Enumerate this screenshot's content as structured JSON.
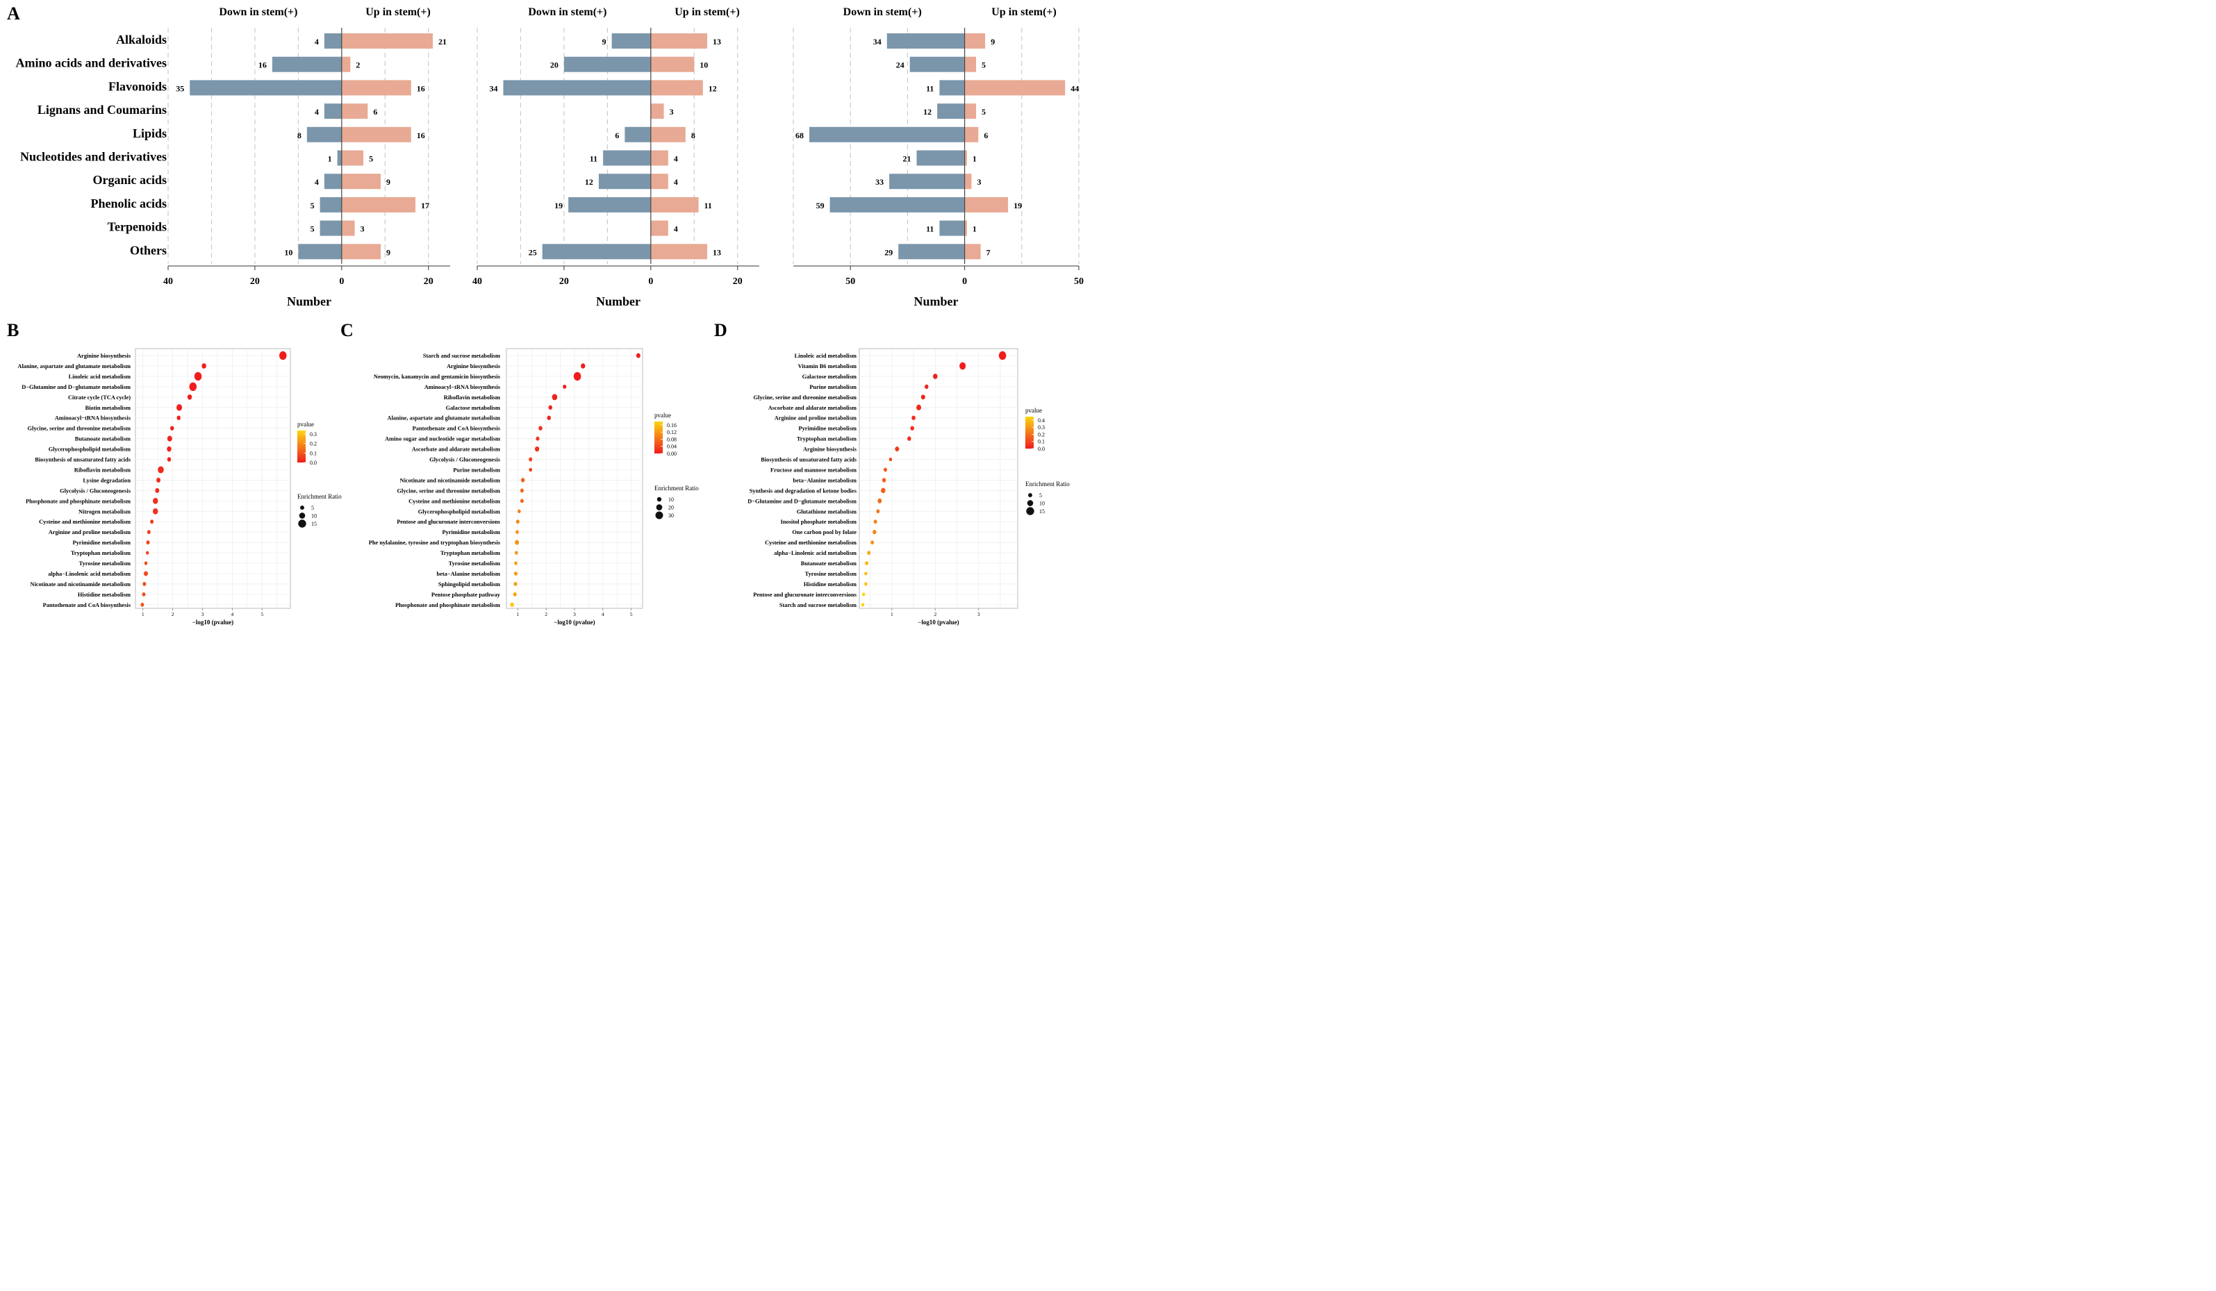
{
  "panel_letters": [
    "A",
    "B",
    "C",
    "D"
  ],
  "colors": {
    "down": "#7b96ab",
    "up": "#e8aa94",
    "low_p": "#f01c1c",
    "mid_p": "#f47a1a",
    "high_p": "#fcd50d"
  },
  "chart_data": [
    {
      "type": "bar",
      "panel": "A-1",
      "left_header": "Down in stem(+)",
      "right_header": "Up in stem(+)",
      "categories": [
        "Alkaloids",
        "Amino acids and derivatives",
        "Flavonoids",
        "Lignans and Coumarins",
        "Lipids",
        "Nucleotides and derivatives",
        "Organic acids",
        "Phenolic acids",
        "Terpenoids",
        "Others"
      ],
      "series": [
        {
          "name": "Down in stem(+)",
          "values": [
            4,
            16,
            35,
            4,
            8,
            1,
            4,
            5,
            5,
            10
          ],
          "labels": [
            "4",
            "16",
            "35",
            "4",
            "8",
            "1",
            "4",
            "5",
            "5",
            "10"
          ]
        },
        {
          "name": "Up in stem(+)",
          "values": [
            21,
            2,
            16,
            6,
            16,
            5,
            9,
            17,
            3,
            9
          ],
          "labels": [
            "21",
            "2",
            "16",
            "6",
            "16",
            "5",
            "9",
            "17",
            "3",
            "9"
          ]
        }
      ],
      "xlim": [
        -40,
        25
      ],
      "xticks": [
        -40,
        -20,
        0,
        20
      ],
      "xtick_labels": [
        "40",
        "20",
        "0",
        "20"
      ],
      "xlabel": "Number"
    },
    {
      "type": "bar",
      "panel": "A-2",
      "left_header": "Down in stem(+)",
      "right_header": "Up in stem(+)",
      "categories": [
        "Alkaloids",
        "Amino acids and derivatives",
        "Flavonoids",
        "Lignans and Coumarins",
        "Lipids",
        "Nucleotides and derivatives",
        "Organic acids",
        "Phenolic acids",
        "Terpenoids",
        "Others"
      ],
      "series": [
        {
          "name": "Down in stem(+)",
          "values": [
            9,
            20,
            34,
            0,
            6,
            11,
            12,
            19,
            0,
            25
          ],
          "labels": [
            "9",
            "20",
            "34",
            "",
            "6",
            "11",
            "12",
            "19",
            "",
            "25"
          ]
        },
        {
          "name": "Up in stem(+)",
          "values": [
            13,
            10,
            12,
            3,
            8,
            4,
            4,
            11,
            4,
            13
          ],
          "labels": [
            "13",
            "10",
            "12",
            "3",
            "8",
            "4",
            "4",
            "11",
            "4",
            "13"
          ]
        }
      ],
      "xlim": [
        -40,
        25
      ],
      "xticks": [
        -40,
        -20,
        0,
        20
      ],
      "xtick_labels": [
        "40",
        "20",
        "0",
        "20"
      ],
      "xlabel": "Number"
    },
    {
      "type": "bar",
      "panel": "A-3",
      "left_header": "Down in stem(+)",
      "right_header": "Up in stem(+)",
      "categories": [
        "Alkaloids",
        "Amino acids and derivatives",
        "Flavonoids",
        "Lignans and Coumarins",
        "Lipids",
        "Nucleotides and derivatives",
        "Organic acids",
        "Phenolic acids",
        "Terpenoids",
        "Others"
      ],
      "series": [
        {
          "name": "Down in stem(+)",
          "values": [
            34,
            24,
            11,
            12,
            68,
            21,
            33,
            59,
            11,
            29
          ],
          "labels": [
            "34",
            "24",
            "11",
            "12",
            "68",
            "21",
            "33",
            "59",
            "11",
            "29"
          ]
        },
        {
          "name": "Up in stem(+)",
          "values": [
            9,
            5,
            44,
            5,
            6,
            1,
            3,
            19,
            1,
            7
          ],
          "labels": [
            "9",
            "5",
            "44",
            "5",
            "6",
            "1",
            "3",
            "19",
            "1",
            "7"
          ]
        }
      ],
      "xlim": [
        -75,
        50
      ],
      "xticks": [
        -50,
        0,
        50
      ],
      "xtick_labels": [
        "50",
        "0",
        "50"
      ],
      "xlabel": "Number"
    },
    {
      "type": "scatter",
      "panel": "B",
      "xlabel": "−log10 (pvalue)",
      "xlim": [
        0.75,
        5.95
      ],
      "xticks": [
        1,
        2,
        3,
        4,
        5
      ],
      "legend_color_title": "pvalue",
      "color_ticks": [
        0.3,
        0.2,
        0.1,
        0.0
      ],
      "color_tick_labels": [
        "0.3",
        "0.2",
        "0.1",
        "0.0"
      ],
      "pmax": 0.36,
      "legend_size_title": "Enrichment Ratio",
      "size_ticks": [
        5,
        10,
        15
      ],
      "size_tick_labels": [
        "5",
        "10",
        "15"
      ],
      "size_range": [
        3,
        15
      ],
      "points": [
        {
          "pathway": "Arginine biosynthesis",
          "x": 5.7,
          "p": 0.0,
          "ratio": 15
        },
        {
          "pathway": "Alanine, aspartate and glutamate metabolism",
          "x": 3.05,
          "p": 0.001,
          "ratio": 7
        },
        {
          "pathway": "Linoleic acid metabolism",
          "x": 2.85,
          "p": 0.001,
          "ratio": 15
        },
        {
          "pathway": "D−Glutamine and D−glutamate metabolism",
          "x": 2.68,
          "p": 0.002,
          "ratio": 15
        },
        {
          "pathway": "Citrate cycle (TCA cycle)",
          "x": 2.57,
          "p": 0.003,
          "ratio": 7
        },
        {
          "pathway": "Biotin metabolism",
          "x": 2.22,
          "p": 0.006,
          "ratio": 10
        },
        {
          "pathway": "Aminoacyl−tRNA biosynthesis",
          "x": 2.2,
          "p": 0.006,
          "ratio": 5
        },
        {
          "pathway": "Glycine, serine and threonine metabolism",
          "x": 1.98,
          "p": 0.01,
          "ratio": 5
        },
        {
          "pathway": "Butanoate metabolism",
          "x": 1.9,
          "p": 0.013,
          "ratio": 8
        },
        {
          "pathway": "Glycerophospholipid metabolism",
          "x": 1.88,
          "p": 0.013,
          "ratio": 7
        },
        {
          "pathway": "Biosynthesis of unsaturated fatty acids",
          "x": 1.88,
          "p": 0.013,
          "ratio": 5
        },
        {
          "pathway": "Riboflavin metabolism",
          "x": 1.6,
          "p": 0.025,
          "ratio": 11
        },
        {
          "pathway": "Lysine degradation",
          "x": 1.52,
          "p": 0.03,
          "ratio": 6
        },
        {
          "pathway": "Glycolysis / Gluconeogenesis",
          "x": 1.48,
          "p": 0.033,
          "ratio": 6
        },
        {
          "pathway": "Phosphonate and phosphinate metabolism",
          "x": 1.42,
          "p": 0.038,
          "ratio": 9
        },
        {
          "pathway": "Nitrogen metabolism",
          "x": 1.42,
          "p": 0.038,
          "ratio": 9
        },
        {
          "pathway": "Cysteine and methionine metabolism",
          "x": 1.3,
          "p": 0.05,
          "ratio": 4
        },
        {
          "pathway": "Arginine and proline metabolism",
          "x": 1.2,
          "p": 0.063,
          "ratio": 4
        },
        {
          "pathway": "Pyrimidine metabolism",
          "x": 1.17,
          "p": 0.068,
          "ratio": 4
        },
        {
          "pathway": "Tryptophan metabolism",
          "x": 1.15,
          "p": 0.07,
          "ratio": 3
        },
        {
          "pathway": "Tyrosine metabolism",
          "x": 1.1,
          "p": 0.08,
          "ratio": 3
        },
        {
          "pathway": "alpha−Linolenic acid metabolism",
          "x": 1.1,
          "p": 0.08,
          "ratio": 6
        },
        {
          "pathway": "Nicotinate and nicotinamide metabolism",
          "x": 1.05,
          "p": 0.09,
          "ratio": 4
        },
        {
          "pathway": "Histidine metabolism",
          "x": 1.03,
          "p": 0.093,
          "ratio": 4
        },
        {
          "pathway": "Pantothenate and CoA biosynthesis",
          "x": 0.98,
          "p": 0.105,
          "ratio": 4
        }
      ]
    },
    {
      "type": "scatter",
      "panel": "C",
      "xlabel": "−log10 (pvalue)",
      "xlim": [
        0.6,
        5.4
      ],
      "xticks": [
        1,
        2,
        3,
        4,
        5
      ],
      "legend_color_title": "pvalue",
      "color_ticks": [
        0.16,
        0.12,
        0.08,
        0.04,
        0.0
      ],
      "color_tick_labels": [
        "0.16",
        "0.12",
        "0.08",
        "0.04",
        "0.00"
      ],
      "pmax": 0.17,
      "legend_size_title": "Enrichment Ratio",
      "size_ticks": [
        10,
        20,
        30
      ],
      "size_tick_labels": [
        "10",
        "20",
        "30"
      ],
      "size_range": [
        3,
        32
      ],
      "points": [
        {
          "pathway": "Starch and sucrose metabolism",
          "x": 5.25,
          "p": 0.0,
          "ratio": 10
        },
        {
          "pathway": "Arginine biosynthesis",
          "x": 3.3,
          "p": 0.001,
          "ratio": 12
        },
        {
          "pathway": "Neomycin, kanamycin and gentamicin biosynthesis",
          "x": 3.1,
          "p": 0.001,
          "ratio": 32
        },
        {
          "pathway": "Aminoacyl−tRNA biosynthesis",
          "x": 2.65,
          "p": 0.002,
          "ratio": 6
        },
        {
          "pathway": "Riboflavin metabolism",
          "x": 2.3,
          "p": 0.005,
          "ratio": 18
        },
        {
          "pathway": "Galactose metabolism",
          "x": 2.15,
          "p": 0.007,
          "ratio": 8
        },
        {
          "pathway": "Alanine, aspartate and glutamate metabolism",
          "x": 2.1,
          "p": 0.008,
          "ratio": 8
        },
        {
          "pathway": "Pantothenate and CoA biosynthesis",
          "x": 1.8,
          "p": 0.016,
          "ratio": 8
        },
        {
          "pathway": "Amino sugar and nucleotide sugar metabolism",
          "x": 1.7,
          "p": 0.02,
          "ratio": 6
        },
        {
          "pathway": "Ascorbate and aldarate metabolism",
          "x": 1.68,
          "p": 0.021,
          "ratio": 12
        },
        {
          "pathway": "Glycolysis / Gluconeogenesis",
          "x": 1.45,
          "p": 0.035,
          "ratio": 6
        },
        {
          "pathway": "Purine metabolism",
          "x": 1.45,
          "p": 0.035,
          "ratio": 4
        },
        {
          "pathway": "Nicotinate and nicotinamide metabolism",
          "x": 1.18,
          "p": 0.066,
          "ratio": 8
        },
        {
          "pathway": "Glycine, serine and threonine metabolism",
          "x": 1.15,
          "p": 0.07,
          "ratio": 6
        },
        {
          "pathway": "Cysteine and methionine metabolism",
          "x": 1.15,
          "p": 0.07,
          "ratio": 6
        },
        {
          "pathway": "Glycerophospholipid metabolism",
          "x": 1.05,
          "p": 0.09,
          "ratio": 4
        },
        {
          "pathway": "Pentose and glucuronate interconversions",
          "x": 1.0,
          "p": 0.1,
          "ratio": 6
        },
        {
          "pathway": "Pyrimidine metabolism",
          "x": 0.98,
          "p": 0.105,
          "ratio": 4
        },
        {
          "pathway": "Phenylalanine, tyrosine and tryptophan biosynthesis",
          "x": 0.97,
          "p": 0.107,
          "ratio": 10,
          "label": "Phe  nylalanine, tyrosine and tryptophan biosynthesis"
        },
        {
          "pathway": "Tryptophan metabolism",
          "x": 0.95,
          "p": 0.112,
          "ratio": 4
        },
        {
          "pathway": "Tyrosine metabolism",
          "x": 0.93,
          "p": 0.117,
          "ratio": 4
        },
        {
          "pathway": "beta−Alanine metabolism",
          "x": 0.93,
          "p": 0.117,
          "ratio": 6
        },
        {
          "pathway": "Sphingolipid metabolism",
          "x": 0.92,
          "p": 0.12,
          "ratio": 6
        },
        {
          "pathway": "Pentose phosphate pathway",
          "x": 0.9,
          "p": 0.126,
          "ratio": 6
        },
        {
          "pathway": "Phosphonate and phosphinate metabolism",
          "x": 0.8,
          "p": 0.158,
          "ratio": 8
        }
      ]
    },
    {
      "type": "scatter",
      "panel": "D",
      "xlabel": "−log10 (pvalue)",
      "xlim": [
        0.25,
        3.9
      ],
      "xticks": [
        1,
        2,
        3
      ],
      "legend_color_title": "pvalue",
      "color_ticks": [
        0.4,
        0.3,
        0.2,
        0.1,
        0.0
      ],
      "color_tick_labels": [
        "0.4",
        "0.3",
        "0.2",
        "0.1",
        "0.0"
      ],
      "pmax": 0.45,
      "legend_size_title": "Enrichment Ratio",
      "size_ticks": [
        5,
        10,
        15
      ],
      "size_tick_labels": [
        "5",
        "10",
        "15"
      ],
      "size_range": [
        3,
        15
      ],
      "points": [
        {
          "pathway": "Linoleic acid metabolism",
          "x": 3.55,
          "p": 0.0,
          "ratio": 15
        },
        {
          "pathway": "Vitamin B6 metabolism",
          "x": 2.63,
          "p": 0.002,
          "ratio": 12
        },
        {
          "pathway": "Galactose metabolism",
          "x": 2.0,
          "p": 0.01,
          "ratio": 7
        },
        {
          "pathway": "Purine metabolism",
          "x": 1.8,
          "p": 0.016,
          "ratio": 5
        },
        {
          "pathway": "Glycine, serine and threonine metabolism",
          "x": 1.72,
          "p": 0.019,
          "ratio": 6
        },
        {
          "pathway": "Ascorbate and aldarate metabolism",
          "x": 1.62,
          "p": 0.024,
          "ratio": 8
        },
        {
          "pathway": "Arginine and proline metabolism",
          "x": 1.5,
          "p": 0.032,
          "ratio": 5
        },
        {
          "pathway": "Pyrimidine metabolism",
          "x": 1.47,
          "p": 0.034,
          "ratio": 5
        },
        {
          "pathway": "Tryptophan metabolism",
          "x": 1.4,
          "p": 0.04,
          "ratio": 5
        },
        {
          "pathway": "Arginine biosynthesis",
          "x": 1.12,
          "p": 0.076,
          "ratio": 6
        },
        {
          "pathway": "Biosynthesis of unsaturated fatty acids",
          "x": 0.97,
          "p": 0.107,
          "ratio": 3
        },
        {
          "pathway": "Fructose and mannose metabolism",
          "x": 0.85,
          "p": 0.14,
          "ratio": 4
        },
        {
          "pathway": "beta−Alanine metabolism",
          "x": 0.82,
          "p": 0.15,
          "ratio": 5
        },
        {
          "pathway": "Synthesis and degradation of ketone bodies",
          "x": 0.8,
          "p": 0.158,
          "ratio": 7
        },
        {
          "pathway": "D−Glutamine and D−glutamate metabolism",
          "x": 0.72,
          "p": 0.19,
          "ratio": 6
        },
        {
          "pathway": "Glutathione metabolism",
          "x": 0.68,
          "p": 0.21,
          "ratio": 4
        },
        {
          "pathway": "Inositol phosphate metabolism",
          "x": 0.62,
          "p": 0.24,
          "ratio": 4
        },
        {
          "pathway": "One carbon pool by folate",
          "x": 0.6,
          "p": 0.25,
          "ratio": 5
        },
        {
          "pathway": "Cysteine and methionine metabolism",
          "x": 0.55,
          "p": 0.28,
          "ratio": 4
        },
        {
          "pathway": "alpha−Linolenic acid metabolism",
          "x": 0.47,
          "p": 0.34,
          "ratio": 4
        },
        {
          "pathway": "Butanoate metabolism",
          "x": 0.42,
          "p": 0.38,
          "ratio": 4
        },
        {
          "pathway": "Tyrosine metabolism",
          "x": 0.4,
          "p": 0.4,
          "ratio": 3
        },
        {
          "pathway": "Histidine metabolism",
          "x": 0.4,
          "p": 0.4,
          "ratio": 3
        },
        {
          "pathway": "Pentose and glucuronate interconversions",
          "x": 0.35,
          "p": 0.45,
          "ratio": 3
        },
        {
          "pathway": "Starch and sucrose metabolism",
          "x": 0.33,
          "p": 0.47,
          "ratio": 3
        }
      ]
    }
  ]
}
